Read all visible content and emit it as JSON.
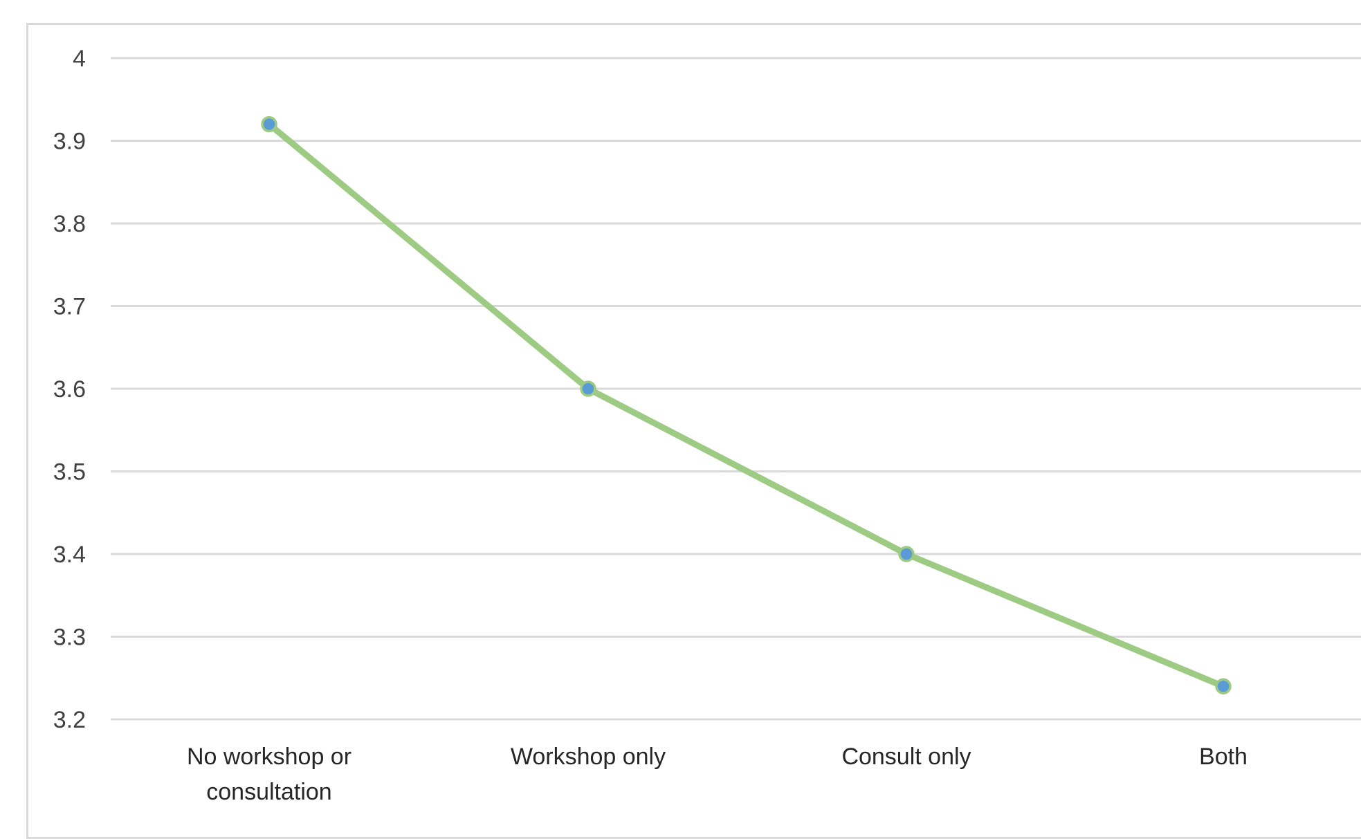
{
  "chart_data": {
    "type": "line",
    "categories": [
      "No workshop or consultation",
      "Workshop only",
      "Consult only",
      "Both"
    ],
    "category_lines": [
      [
        "No workshop or",
        "consultation"
      ],
      [
        "Workshop only"
      ],
      [
        "Consult only"
      ],
      [
        "Both"
      ]
    ],
    "series": [
      {
        "values": [
          3.92,
          3.6,
          3.4,
          3.24
        ],
        "color": "#9dcb84",
        "marker_fill": "#5b9bd5"
      }
    ],
    "ylim": [
      3.2,
      4.0
    ],
    "yticks": [
      "3.2",
      "3.3",
      "3.4",
      "3.5",
      "3.6",
      "3.7",
      "3.8",
      "3.9",
      "4"
    ],
    "grid": true,
    "title": "",
    "xlabel": "",
    "ylabel": "",
    "gridline_color": "#d9d9d9",
    "frame_color": "#d9d9d9"
  }
}
